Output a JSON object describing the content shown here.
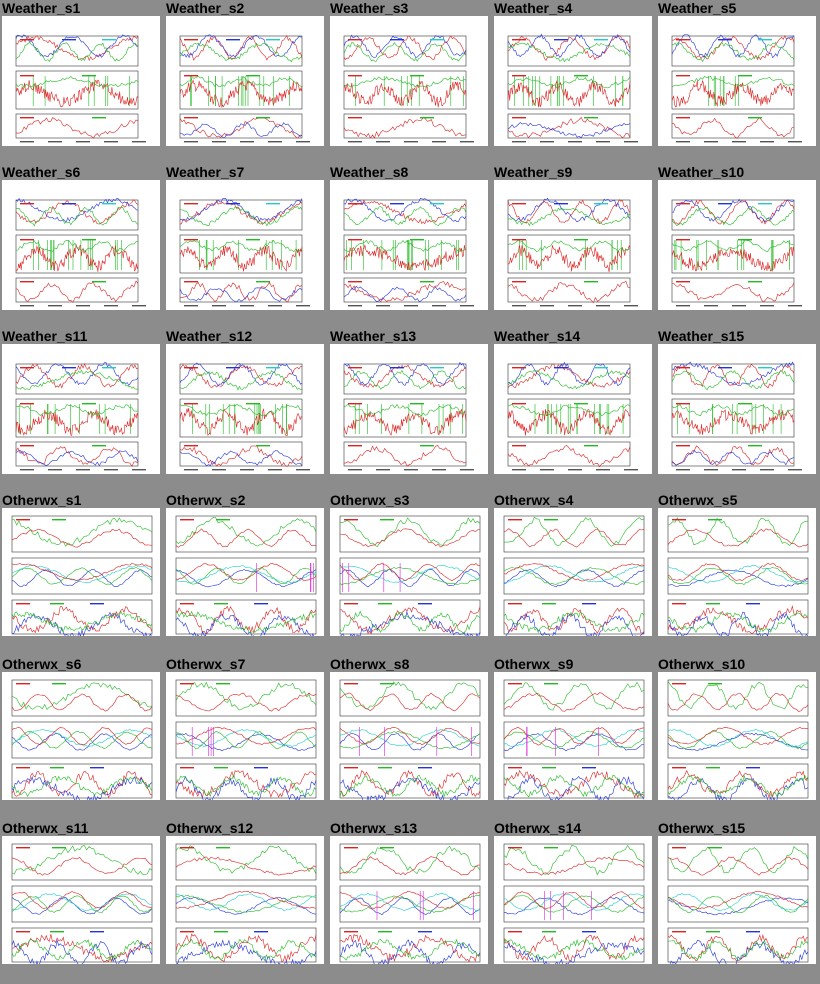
{
  "page": {
    "background": "#8c8c8c"
  },
  "colors": {
    "red": "#dd2222",
    "green": "#22bb22",
    "blue": "#2233dd",
    "cyan": "#22cccc",
    "magenta": "#dd22dd"
  },
  "weather": [
    {
      "title": "Weather_s1"
    },
    {
      "title": "Weather_s2"
    },
    {
      "title": "Weather_s3"
    },
    {
      "title": "Weather_s4"
    },
    {
      "title": "Weather_s5"
    },
    {
      "title": "Weather_s6"
    },
    {
      "title": "Weather_s7"
    },
    {
      "title": "Weather_s8"
    },
    {
      "title": "Weather_s9"
    },
    {
      "title": "Weather_s10"
    },
    {
      "title": "Weather_s11"
    },
    {
      "title": "Weather_s12"
    },
    {
      "title": "Weather_s13"
    },
    {
      "title": "Weather_s14"
    },
    {
      "title": "Weather_s15"
    }
  ],
  "otherwx": [
    {
      "title": "Otherwx_s1"
    },
    {
      "title": "Otherwx_s2"
    },
    {
      "title": "Otherwx_s3"
    },
    {
      "title": "Otherwx_s4"
    },
    {
      "title": "Otherwx_s5"
    },
    {
      "title": "Otherwx_s6"
    },
    {
      "title": "Otherwx_s7"
    },
    {
      "title": "Otherwx_s8"
    },
    {
      "title": "Otherwx_s9"
    },
    {
      "title": "Otherwx_s10"
    },
    {
      "title": "Otherwx_s11"
    },
    {
      "title": "Otherwx_s12"
    },
    {
      "title": "Otherwx_s13"
    },
    {
      "title": "Otherwx_s14"
    },
    {
      "title": "Otherwx_s15"
    }
  ]
}
